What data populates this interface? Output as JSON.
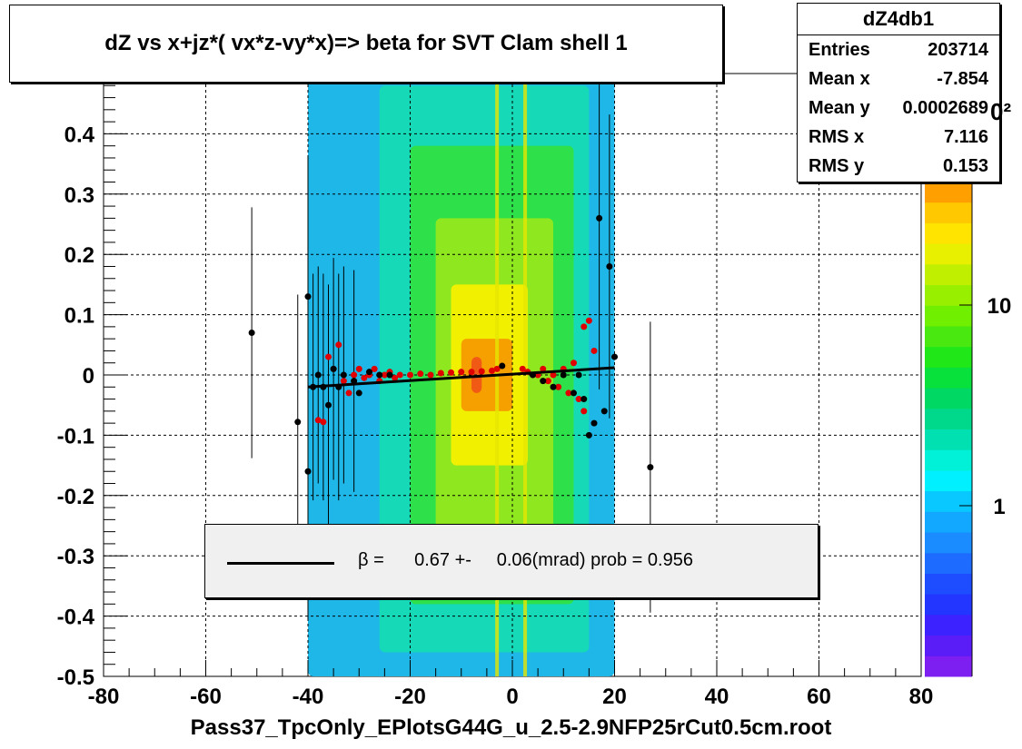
{
  "chart_data": {
    "type": "scatter",
    "title": "dZ vs  x+jz*( vx*z-vy*x)=> beta  for SVT Clam shell 1",
    "xlabel": "Pass37_TpcOnly_EPlotsG44G_u_2.5-2.9NFP25rCut0.5cm.root",
    "ylabel": "",
    "xlim": [
      -80,
      80
    ],
    "ylim": [
      -0.5,
      0.5
    ],
    "x_ticks": [
      "-80",
      "-60",
      "-40",
      "-20",
      "0",
      "20",
      "40",
      "60",
      "80"
    ],
    "y_ticks": [
      "-0.5",
      "-0.4",
      "-0.3",
      "-0.2",
      "-0.1",
      "0",
      "0.1",
      "0.2",
      "0.3",
      "0.4"
    ],
    "grid": true,
    "colorbar": {
      "scale": "log",
      "tick_labels": [
        "1",
        "10"
      ],
      "partial_label": "0²"
    },
    "stats": {
      "name": "dZ4db1",
      "rows": [
        {
          "label": "Entries",
          "value": "203714"
        },
        {
          "label": "Mean x",
          "value": "-7.854"
        },
        {
          "label": "Mean y",
          "value": "0.0002689"
        },
        {
          "label": "RMS x",
          "value": "7.116"
        },
        {
          "label": "RMS y",
          "value": "0.153"
        }
      ]
    },
    "legend": {
      "symbol": "β",
      "text": " =      0.67 +-     0.06(mrad) prob = 0.956"
    },
    "fit_line": {
      "x": [
        -40,
        20
      ],
      "y": [
        -0.02,
        0.012
      ]
    },
    "points_black": [
      {
        "x": -51,
        "y": 0.07
      },
      {
        "x": -42,
        "y": -0.078
      },
      {
        "x": -40,
        "y": 0.13
      },
      {
        "x": -40,
        "y": -0.16
      },
      {
        "x": -39,
        "y": -0.02
      },
      {
        "x": -38,
        "y": 0.0
      },
      {
        "x": -37,
        "y": -0.02
      },
      {
        "x": -36,
        "y": -0.05
      },
      {
        "x": -35,
        "y": 0.01
      },
      {
        "x": -34,
        "y": -0.02
      },
      {
        "x": -33,
        "y": 0.0
      },
      {
        "x": -31,
        "y": -0.01
      },
      {
        "x": -30,
        "y": -0.03
      },
      {
        "x": -28,
        "y": 0.005
      },
      {
        "x": -26,
        "y": 0.0
      },
      {
        "x": -24,
        "y": 0.0
      },
      {
        "x": -2,
        "y": 0.015
      },
      {
        "x": 4,
        "y": 0.0
      },
      {
        "x": 6,
        "y": -0.01
      },
      {
        "x": 8,
        "y": -0.02
      },
      {
        "x": 10,
        "y": 0.0
      },
      {
        "x": 12,
        "y": -0.03
      },
      {
        "x": 13,
        "y": 0.0
      },
      {
        "x": 14,
        "y": -0.04
      },
      {
        "x": 15,
        "y": -0.1
      },
      {
        "x": 16,
        "y": -0.08
      },
      {
        "x": 17,
        "y": 0.26
      },
      {
        "x": 18,
        "y": -0.06
      },
      {
        "x": 19,
        "y": 0.18
      },
      {
        "x": 20,
        "y": 0.03
      },
      {
        "x": 27,
        "y": -0.153
      }
    ],
    "points_red": [
      {
        "x": -38,
        "y": -0.075
      },
      {
        "x": -37,
        "y": -0.078
      },
      {
        "x": -36,
        "y": 0.03
      },
      {
        "x": -35,
        "y": 0.01
      },
      {
        "x": -34,
        "y": 0.05
      },
      {
        "x": -33,
        "y": -0.01
      },
      {
        "x": -32,
        "y": -0.03
      },
      {
        "x": -31,
        "y": 0.0
      },
      {
        "x": -30,
        "y": 0.01
      },
      {
        "x": -29,
        "y": -0.005
      },
      {
        "x": -28,
        "y": 0.0
      },
      {
        "x": -27,
        "y": 0.01
      },
      {
        "x": -26,
        "y": -0.01
      },
      {
        "x": -25,
        "y": 0.0
      },
      {
        "x": -24,
        "y": 0.005
      },
      {
        "x": -23,
        "y": -0.005
      },
      {
        "x": -22,
        "y": 0.0
      },
      {
        "x": -20,
        "y": 0.0
      },
      {
        "x": -18,
        "y": 0.002
      },
      {
        "x": -16,
        "y": 0.0
      },
      {
        "x": -14,
        "y": 0.003
      },
      {
        "x": -12,
        "y": 0.004
      },
      {
        "x": -10,
        "y": 0.005
      },
      {
        "x": -8,
        "y": 0.005
      },
      {
        "x": -6,
        "y": 0.006
      },
      {
        "x": -4,
        "y": 0.007
      },
      {
        "x": -3,
        "y": 0.01
      },
      {
        "x": 2,
        "y": 0.01
      },
      {
        "x": 3,
        "y": 0.005
      },
      {
        "x": 5,
        "y": 0.0
      },
      {
        "x": 6,
        "y": 0.01
      },
      {
        "x": 7,
        "y": -0.01
      },
      {
        "x": 8,
        "y": 0.0
      },
      {
        "x": 9,
        "y": -0.02
      },
      {
        "x": 10,
        "y": 0.01
      },
      {
        "x": 11,
        "y": -0.03
      },
      {
        "x": 12,
        "y": 0.02
      },
      {
        "x": 13,
        "y": -0.04
      },
      {
        "x": 14,
        "y": 0.08
      },
      {
        "x": 15,
        "y": 0.09
      },
      {
        "x": 16,
        "y": 0.04
      },
      {
        "x": 14,
        "y": -0.06
      }
    ],
    "heat_bands": [
      {
        "x0": -40,
        "x1": 20,
        "y0": -0.5,
        "y1": 0.5,
        "color": "#1fb6e8"
      },
      {
        "x0": -26,
        "x1": 15,
        "y0": -0.46,
        "y1": 0.48,
        "color": "#16d9b8"
      },
      {
        "x0": -20,
        "x1": 12,
        "y0": -0.38,
        "y1": 0.38,
        "color": "#2ee14a"
      },
      {
        "x0": -15,
        "x1": 8,
        "y0": -0.26,
        "y1": 0.26,
        "color": "#8fe81f"
      },
      {
        "x0": -12,
        "x1": 3,
        "y0": -0.15,
        "y1": 0.15,
        "color": "#f0f000"
      },
      {
        "x0": -10,
        "x1": 0,
        "y0": -0.06,
        "y1": 0.06,
        "color": "#f6a000"
      },
      {
        "x0": -8,
        "x1": -6,
        "y0": -0.03,
        "y1": 0.03,
        "color": "#f05a14"
      }
    ],
    "colorbar_colors": [
      "#7d1ff0",
      "#5a1cf7",
      "#3c22ff",
      "#2236ff",
      "#1e4cff",
      "#1e6cff",
      "#1a8cff",
      "#12a8ff",
      "#08c8ff",
      "#00f0ff",
      "#00f0d8",
      "#00e0b0",
      "#00d88c",
      "#00d864",
      "#08e03c",
      "#20e818",
      "#48e810",
      "#70f000",
      "#98f000",
      "#c0f000",
      "#e8f000",
      "#ffe400",
      "#ffc800",
      "#ffa000"
    ]
  }
}
